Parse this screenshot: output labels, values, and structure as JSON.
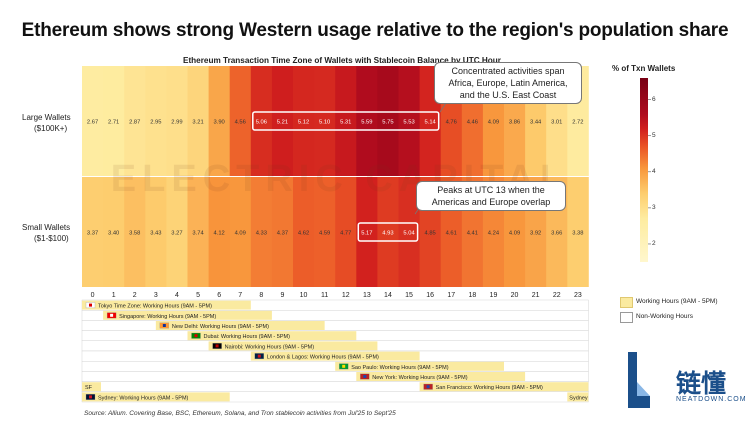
{
  "title": "Ethereum shows strong Western usage relative to the region's population share",
  "chart_data": {
    "type": "heatmap",
    "title": "Ethereum Transaction Time Zone of Wallets with Stablecoin Balance by UTC Hour",
    "x": [
      "0",
      "1",
      "2",
      "3",
      "4",
      "5",
      "6",
      "7",
      "8",
      "9",
      "10",
      "11",
      "12",
      "13",
      "14",
      "15",
      "16",
      "17",
      "18",
      "19",
      "20",
      "21",
      "22",
      "23"
    ],
    "rows": [
      {
        "label_line1": "Large Wallets",
        "label_line2": "($100K+)",
        "values": [
          2.67,
          2.71,
          2.87,
          2.95,
          2.99,
          3.21,
          3.9,
          4.56,
          5.06,
          5.21,
          5.12,
          5.1,
          5.31,
          5.59,
          5.75,
          5.53,
          5.14,
          4.76,
          4.46,
          4.09,
          3.86,
          3.44,
          3.01,
          2.72
        ]
      },
      {
        "label_line1": "Small Wallets",
        "label_line2": "($1-$100)",
        "values": [
          3.37,
          3.4,
          3.58,
          3.43,
          3.27,
          3.74,
          4.12,
          4.09,
          4.33,
          4.37,
          4.62,
          4.59,
          4.77,
          5.17,
          4.93,
          5.04,
          4.85,
          4.61,
          4.41,
          4.24,
          4.09,
          3.92,
          3.66,
          3.38
        ]
      }
    ],
    "highlights": [
      {
        "row": 0,
        "from": 8,
        "to": 16
      },
      {
        "row": 1,
        "from": 13,
        "to": 15
      }
    ],
    "legend": {
      "title": "% of Txn Wallets",
      "ticks": [
        "6",
        "5",
        "4",
        "3",
        "2"
      ],
      "range": [
        1.5,
        6.6
      ]
    },
    "annotations": [
      {
        "lines": [
          "Concentrated activities span",
          "Africa, Europe, Latin America,",
          "and the U.S. East Coast"
        ]
      },
      {
        "lines": [
          "Peaks at UTC 13 when the",
          "Americas and Europe overlap"
        ]
      }
    ],
    "timezones": [
      {
        "label": "Tokyo Time Zone: Working Hours (9AM - 5PM)",
        "start_utc": 0,
        "end_utc": 8,
        "flag": "jp"
      },
      {
        "label": "Singapore: Working Hours (9AM - 5PM)",
        "start_utc": 1,
        "end_utc": 9,
        "flag": "sg"
      },
      {
        "label": "New Delhi: Working Hours (9AM - 5PM)",
        "start_utc": 3.5,
        "end_utc": 11.5,
        "flag": "in"
      },
      {
        "label": "Dubai: Working Hours (9AM - 5PM)",
        "start_utc": 5,
        "end_utc": 13,
        "flag": "ae"
      },
      {
        "label": "Nairobi: Working Hours (9AM - 5PM)",
        "start_utc": 6,
        "end_utc": 14,
        "flag": "ke"
      },
      {
        "label": "London & Lagos: Working Hours (9AM - 5PM)",
        "start_utc": 8,
        "end_utc": 16,
        "flag": "uk"
      },
      {
        "label": "Sao Paulo: Working Hours (9AM - 5PM)",
        "start_utc": 12,
        "end_utc": 20,
        "flag": "br"
      },
      {
        "label": "New York: Working Hours (9AM - 5PM)",
        "start_utc": 13,
        "end_utc": 21,
        "flag": "us"
      },
      {
        "label": "San Francisco: Working Hours (9AM - 5PM)",
        "start_utc": 16,
        "end_utc": 24,
        "flag": "us",
        "wrap_label": "SF"
      },
      {
        "label": "Sydney: Working Hours (9AM - 5PM)",
        "start_utc": 0,
        "end_utc": 7,
        "flag": "au",
        "tail_start": 23,
        "tail_label": "Sydney"
      }
    ],
    "tz_legend": [
      "Working Hours (9AM - 5PM)",
      "Non-Working Hours"
    ]
  },
  "watermark": "ELECTRIC CAPITAL",
  "source": "Source: Allium. Covering Base, BSC, Ethereum, Solana, and Tron stablecoin activities from Jul'25 to Sept'25",
  "logo": {
    "cn": "链懂",
    "en": "NEATDOWN.COM"
  },
  "colors": {
    "working": "#faeaa0",
    "nonworking": "#ffffff",
    "accent": "#b30e22"
  }
}
